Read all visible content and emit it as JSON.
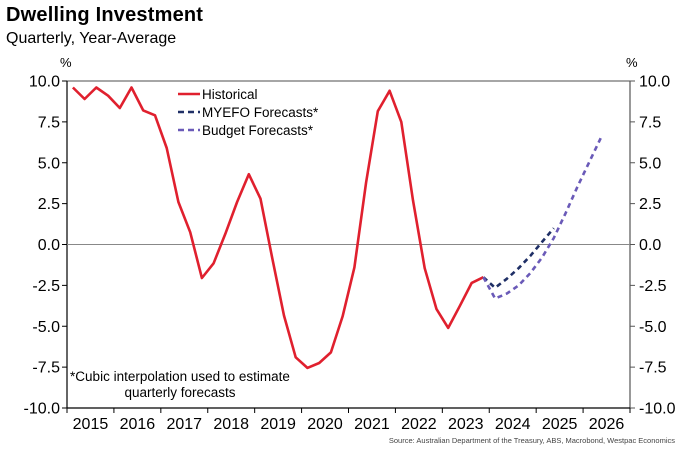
{
  "chart_data": {
    "type": "line",
    "title": "Dwelling Investment",
    "subtitle": "Quarterly, Year-Average",
    "ylabel_left": "%",
    "ylabel_right": "%",
    "xlabel": "",
    "ylim": [
      -10,
      10
    ],
    "yticks": [
      10.0,
      7.5,
      5.0,
      2.5,
      0.0,
      -2.5,
      -5.0,
      -7.5,
      -10.0
    ],
    "ytick_labels": [
      "10.0",
      "7.5",
      "5.0",
      "2.5",
      "0.0",
      "-2.5",
      "-5.0",
      "-7.5",
      "-10.0"
    ],
    "x_start": "2015Q1",
    "xticks": [
      "2015",
      "2016",
      "2017",
      "2018",
      "2019",
      "2020",
      "2021",
      "2022",
      "2023",
      "2024",
      "2025",
      "2026"
    ],
    "grid": false,
    "zero_line": true,
    "legend_position": "top-center",
    "series": [
      {
        "name": "Historical",
        "style": "solid",
        "color": "#e0202e",
        "start_quarter_index": 0,
        "values": [
          9.6,
          8.9,
          9.6,
          9.1,
          8.35,
          9.6,
          8.2,
          7.9,
          5.9,
          2.6,
          0.75,
          -2.05,
          -1.15,
          0.65,
          2.6,
          4.3,
          2.8,
          -0.85,
          -4.35,
          -6.9,
          -7.55,
          -7.25,
          -6.6,
          -4.4,
          -1.4,
          3.8,
          8.15,
          9.4,
          7.5,
          2.7,
          -1.45,
          -3.95,
          -5.1,
          -3.75,
          -2.35,
          -2.0
        ]
      },
      {
        "name": "MYEFO Forecasts*",
        "style": "dashed",
        "color": "#1f2f66",
        "start_quarter_index": 35,
        "values": [
          -2.0,
          -2.65,
          -2.1,
          -1.45,
          -0.7,
          0.15,
          1.0
        ]
      },
      {
        "name": "Budget Forecasts*",
        "style": "dashed",
        "color": "#6a5ab8",
        "start_quarter_index": 35,
        "values": [
          -2.0,
          -3.3,
          -3.0,
          -2.5,
          -1.75,
          -0.8,
          0.4,
          1.9,
          3.5,
          5.0,
          6.5
        ]
      }
    ],
    "annotations": [
      "*Cubic interpolation used to estimate",
      "quarterly forecasts"
    ]
  },
  "source": "Source: Australian Department of the Treasury, ABS, Macrobond, Westpac Economics"
}
